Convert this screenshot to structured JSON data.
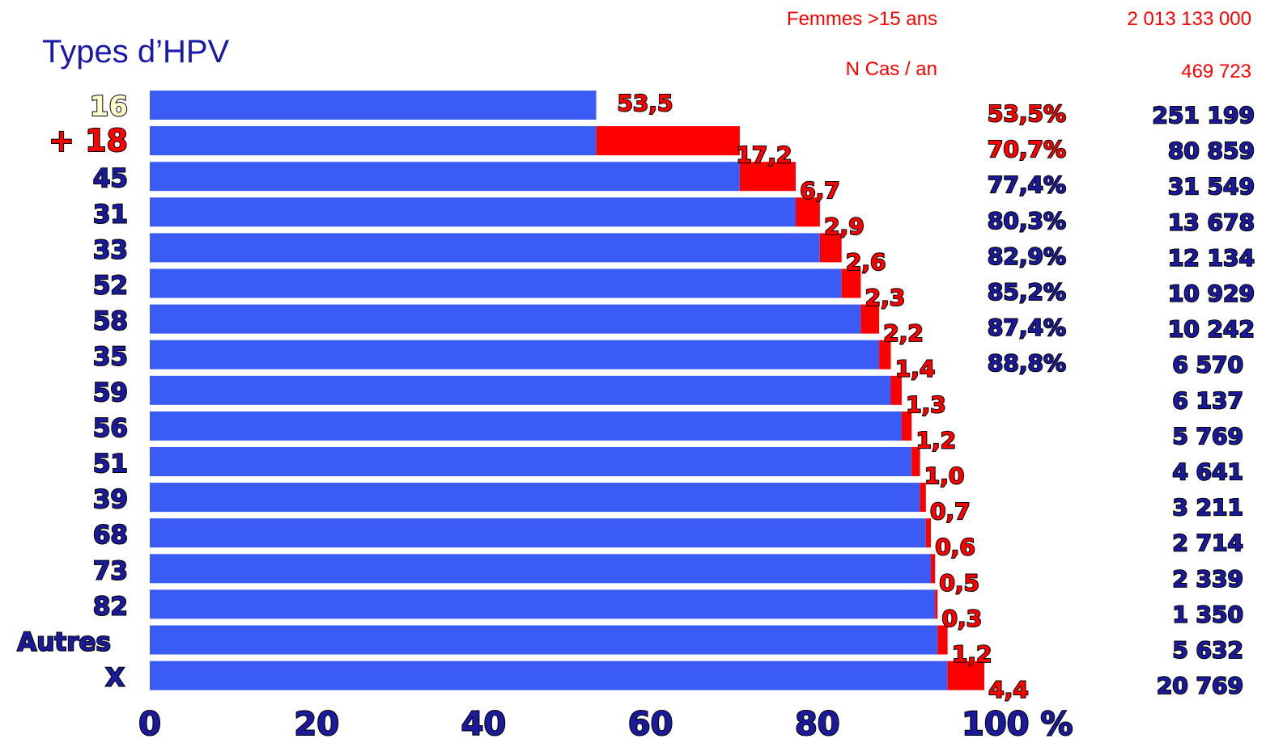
{
  "chart_data": {
    "type": "bar",
    "title": "Types d’HPV",
    "categories": [
      "16",
      "+ 18",
      "45",
      "31",
      "33",
      "52",
      "58",
      "35",
      "59",
      "56",
      "51",
      "39",
      "68",
      "73",
      "82",
      "Autres",
      "X"
    ],
    "values": [
      53.5,
      17.2,
      6.7,
      2.9,
      2.6,
      2.3,
      2.2,
      1.4,
      1.3,
      1.2,
      1.0,
      0.7,
      0.6,
      0.5,
      0.3,
      1.2,
      4.4
    ],
    "value_labels": [
      "53,5",
      "17,2",
      "6,7",
      "2,9",
      "2,6",
      "2,3",
      "2,2",
      "1,4",
      "1,3",
      "1,2",
      "1,0",
      "0,7",
      "0,6",
      "0,5",
      "0,3",
      "1,2",
      "4,4"
    ],
    "cumulative": [
      53.5,
      70.7,
      77.4,
      80.3,
      82.9,
      85.2,
      87.4,
      88.8,
      88.8,
      88.8,
      88.8,
      88.8,
      88.8,
      88.8,
      88.8,
      88.8,
      88.8
    ],
    "cumulative_base": [
      0,
      53.5,
      70.7,
      77.4,
      80.3,
      82.9,
      85.2,
      87.4,
      88.8,
      90.1,
      91.3,
      92.3,
      93.0,
      93.6,
      94.1,
      94.4,
      95.6
    ],
    "cumulative_labels": [
      "53,5%",
      "70,7%",
      "77,4%",
      "80,3%",
      "82,9%",
      "85,2%",
      "87,4%",
      "88,8%"
    ],
    "cases": [
      "251 199",
      "80 859",
      "31 549",
      "13 678",
      "12 134",
      "10 929",
      "10 242",
      "6 570",
      "6 137",
      "5 769",
      "4 641",
      "3 211",
      "2 714",
      "2 339",
      "1 350",
      "5 632",
      "20 769"
    ],
    "x_ticks": [
      "0",
      "20",
      "40",
      "60",
      "80",
      "100 %"
    ],
    "xlim": [
      0,
      100
    ],
    "header": {
      "women_label": "Femmes >15 ans",
      "women_value": "2 013 133 000",
      "cases_label": "N Cas / an",
      "cases_value": "469 723"
    },
    "colors": {
      "base": "#3a5cf5",
      "increment": "#ff0000",
      "label_red": "#ff0000",
      "label_navy": "#1a1a9a",
      "title": "#1a1aa8"
    }
  }
}
